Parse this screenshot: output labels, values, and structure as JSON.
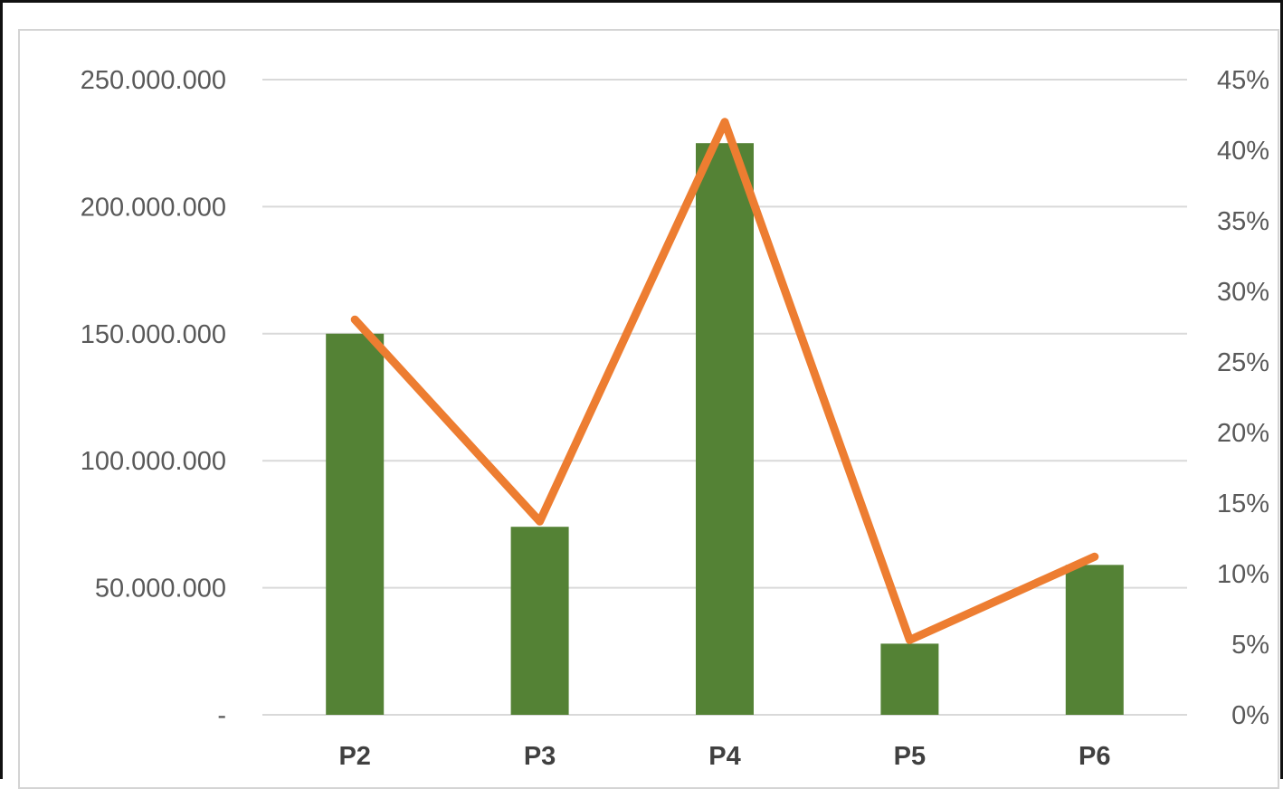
{
  "chart_data": {
    "type": "bar",
    "categories": [
      "P2",
      "P3",
      "P4",
      "P5",
      "P6"
    ],
    "series": [
      {
        "type": "bar",
        "axis": "left",
        "values": [
          150000000,
          74000000,
          225000000,
          28000000,
          59000000
        ],
        "color": "#548235"
      },
      {
        "type": "line",
        "axis": "right",
        "values": [
          0.28,
          0.137,
          0.42,
          0.053,
          0.112
        ],
        "color": "#ed7d31"
      }
    ],
    "y_left": {
      "range": [
        0,
        250000000
      ],
      "ticks": [
        {
          "value": 0,
          "label": "-"
        },
        {
          "value": 50000000,
          "label": "50.000.000"
        },
        {
          "value": 100000000,
          "label": "100.000.000"
        },
        {
          "value": 150000000,
          "label": "150.000.000"
        },
        {
          "value": 200000000,
          "label": "200.000.000"
        },
        {
          "value": 250000000,
          "label": "250.000.000"
        }
      ]
    },
    "y_right": {
      "range": [
        0,
        0.45
      ],
      "ticks": [
        {
          "value": 0,
          "label": "0%"
        },
        {
          "value": 0.05,
          "label": "5%"
        },
        {
          "value": 0.1,
          "label": "10%"
        },
        {
          "value": 0.15,
          "label": "15%"
        },
        {
          "value": 0.2,
          "label": "20%"
        },
        {
          "value": 0.25,
          "label": "25%"
        },
        {
          "value": 0.3,
          "label": "30%"
        },
        {
          "value": 0.35,
          "label": "35%"
        },
        {
          "value": 0.4,
          "label": "40%"
        },
        {
          "value": 0.45,
          "label": "45%"
        }
      ]
    },
    "grid": true,
    "gridline_color": "#d9d9d9",
    "legend": "none"
  }
}
